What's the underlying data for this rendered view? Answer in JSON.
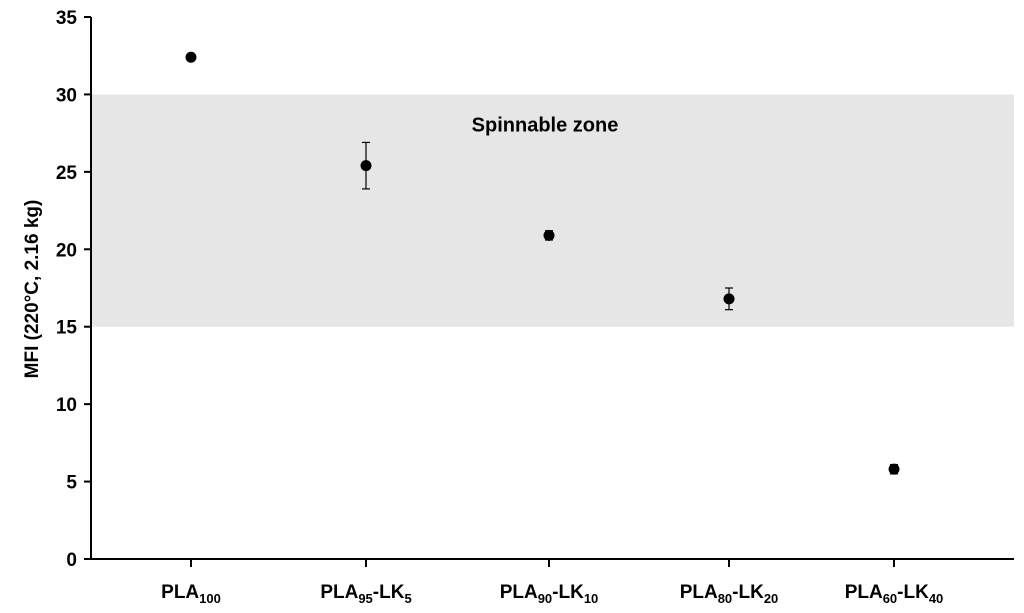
{
  "chart_data": {
    "type": "scatter",
    "title": "",
    "ylabel": "MFI (220°C, 2.16 kg)",
    "xlabel": "",
    "ylim": [
      0,
      35
    ],
    "yticks": [
      0,
      5,
      10,
      15,
      20,
      25,
      30,
      35
    ],
    "grid": false,
    "legend": "none",
    "categories": [
      {
        "base": "PLA",
        "sub1": "100",
        "mid": "",
        "sub2": ""
      },
      {
        "base": "PLA",
        "sub1": "95",
        "mid": "-LK",
        "sub2": "5"
      },
      {
        "base": "PLA",
        "sub1": "90",
        "mid": "-LK",
        "sub2": "10"
      },
      {
        "base": "PLA",
        "sub1": "80",
        "mid": "-LK",
        "sub2": "20"
      },
      {
        "base": "PLA",
        "sub1": "60",
        "mid": "-LK",
        "sub2": "40"
      }
    ],
    "series": [
      {
        "values": [
          32.4,
          25.4,
          20.9,
          16.8,
          5.8
        ],
        "error": [
          0.0,
          1.5,
          0.3,
          0.7,
          0.3
        ],
        "color": "#000000"
      }
    ],
    "band": {
      "from": 15,
      "to": 30,
      "label": "Spinnable zone",
      "color": "#e6e6e6"
    }
  }
}
